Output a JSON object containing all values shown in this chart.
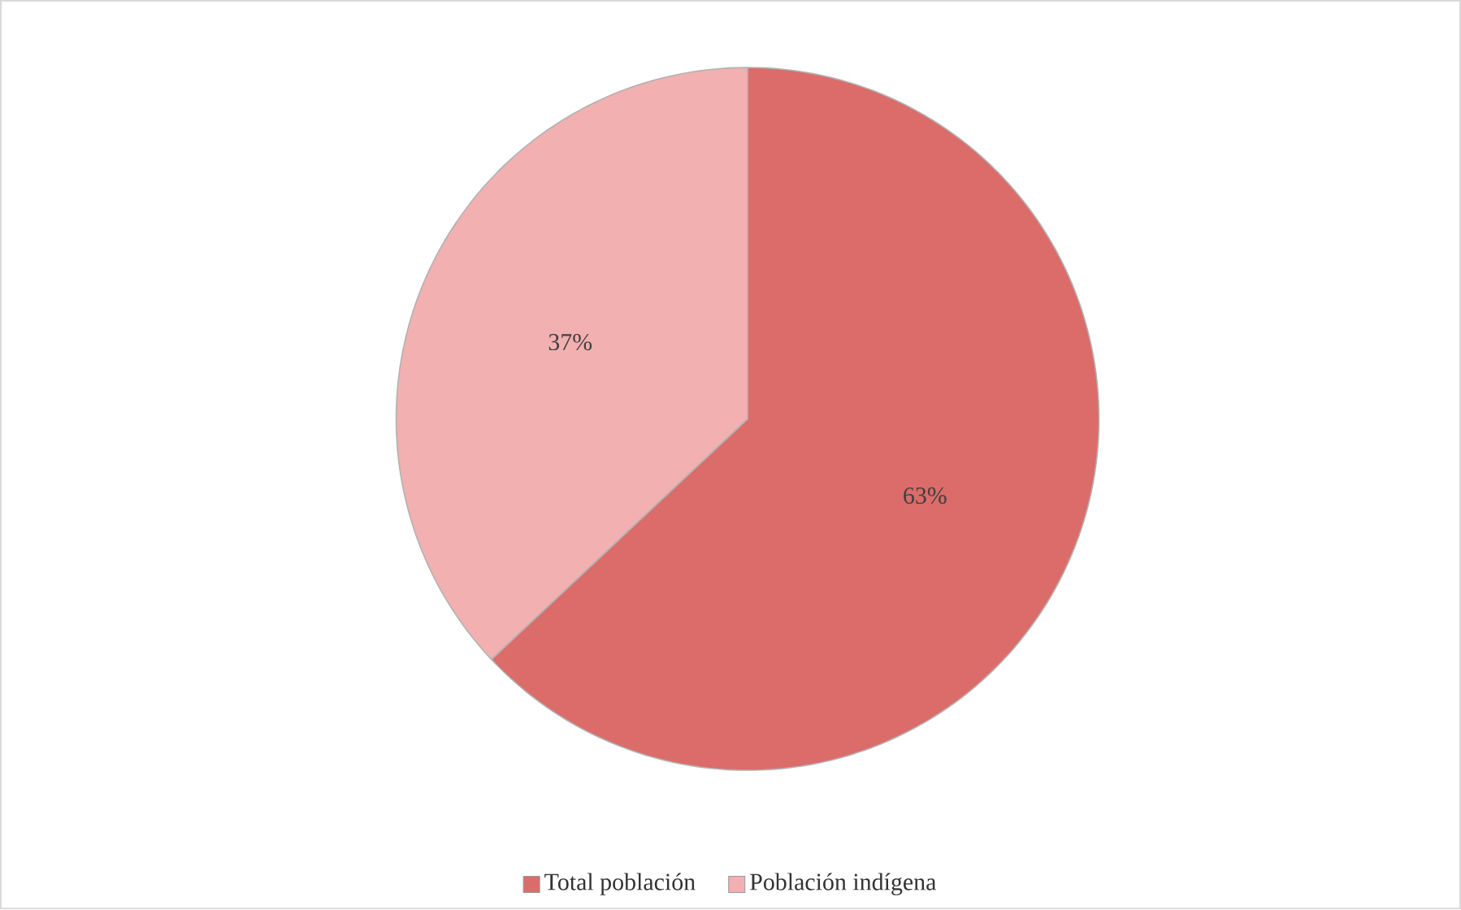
{
  "chart_data": {
    "type": "pie",
    "categories": [
      "Total población",
      "Población indígena"
    ],
    "values": [
      63,
      37
    ],
    "colors": [
      "#db6c6a",
      "#f2b0b0"
    ],
    "value_labels": [
      "63%",
      "37%"
    ],
    "legend": "bottom"
  }
}
